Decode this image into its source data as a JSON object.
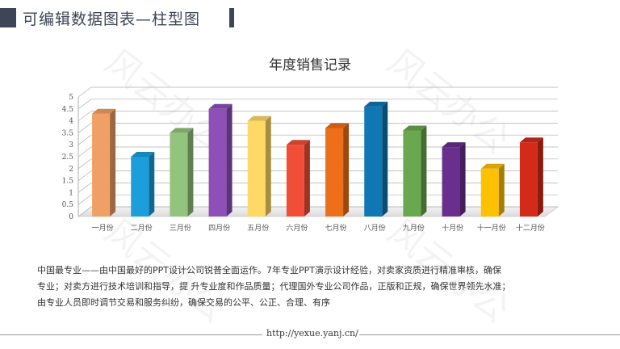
{
  "header": {
    "title": "可编辑数据图表—柱型图"
  },
  "watermark": {
    "text": "风云办公"
  },
  "chart_data": {
    "type": "bar",
    "title": "年度销售记录",
    "categories": [
      "一月份",
      "二月份",
      "三月份",
      "四月份",
      "五月份",
      "六月份",
      "七月份",
      "八月份",
      "九月份",
      "十月份",
      "十一月份",
      "十二月份"
    ],
    "values": [
      4.3,
      2.5,
      3.5,
      4.5,
      4.0,
      3.0,
      3.7,
      4.6,
      3.6,
      2.9,
      2.0,
      3.1
    ],
    "colors": [
      "#F0A064",
      "#1A9FDC",
      "#93C47D",
      "#8E4FB8",
      "#FFD966",
      "#F04E37",
      "#EE6F1A",
      "#0E77B4",
      "#6AA84F",
      "#6A2E8C",
      "#FFC000",
      "#D42A1A"
    ],
    "yticks": [
      "0",
      "0.5",
      "1",
      "1.5",
      "2",
      "2.5",
      "3",
      "3.5",
      "4",
      "4.5",
      "5"
    ],
    "ylim": [
      0,
      5
    ],
    "grid": true,
    "xlabel": "",
    "ylabel": ""
  },
  "description": {
    "lines": [
      "中国最专业——由中国最好的PPT设计公司锐普全面运作。7年专业PPT演示设计经验，对卖家资质进行精准审核，确保",
      "专业；对卖方进行技术培训和指导，提 升专业度和作品质量；代理国外专业公司作品，正版和正规，确保世界领先水准；",
      "由专业人员即时调节交易和服务纠纷，确保交易的公平、公正、合理、有序"
    ]
  },
  "footer": {
    "url": "http://yexue.yanj.cn/"
  }
}
